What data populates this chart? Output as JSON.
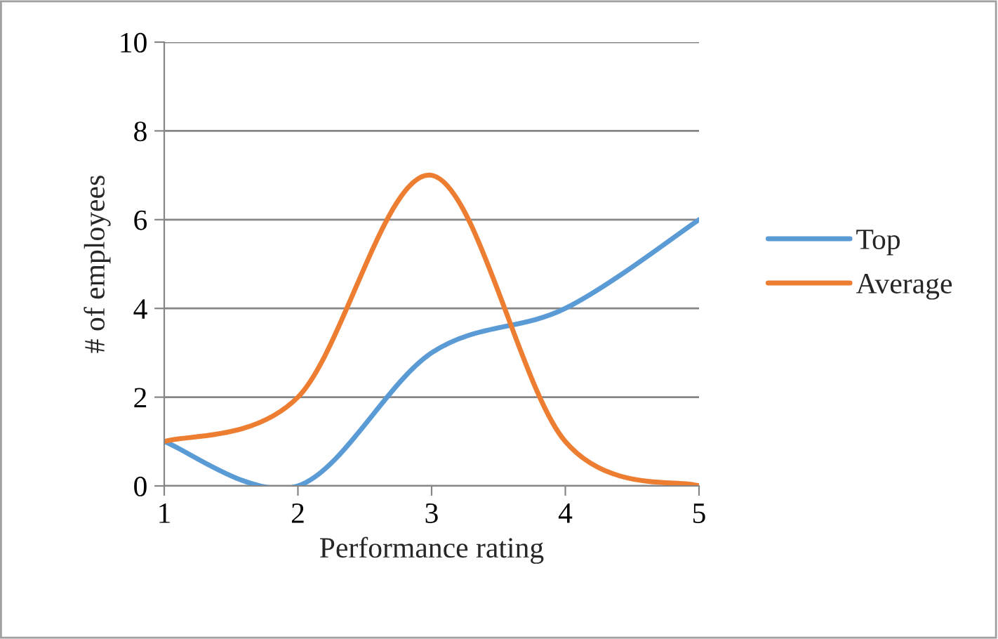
{
  "chart_data": {
    "type": "line",
    "xlabel": "Performance rating",
    "ylabel": "# of employees",
    "x": [
      1,
      2,
      3,
      4,
      5
    ],
    "series": [
      {
        "name": "Top",
        "color": "#5b9bd5",
        "values": [
          1,
          0,
          3,
          4,
          6
        ]
      },
      {
        "name": "Average",
        "color": "#ed7d31",
        "values": [
          1,
          2,
          7,
          1,
          0
        ]
      }
    ],
    "xlim": [
      1,
      5
    ],
    "xticks": [
      1,
      2,
      3,
      4,
      5
    ],
    "ylim": [
      0,
      10
    ],
    "yticks": [
      0,
      2,
      4,
      6,
      8,
      10
    ],
    "grid": "y",
    "legend": "right",
    "marker": "none",
    "line_style": "solid"
  }
}
